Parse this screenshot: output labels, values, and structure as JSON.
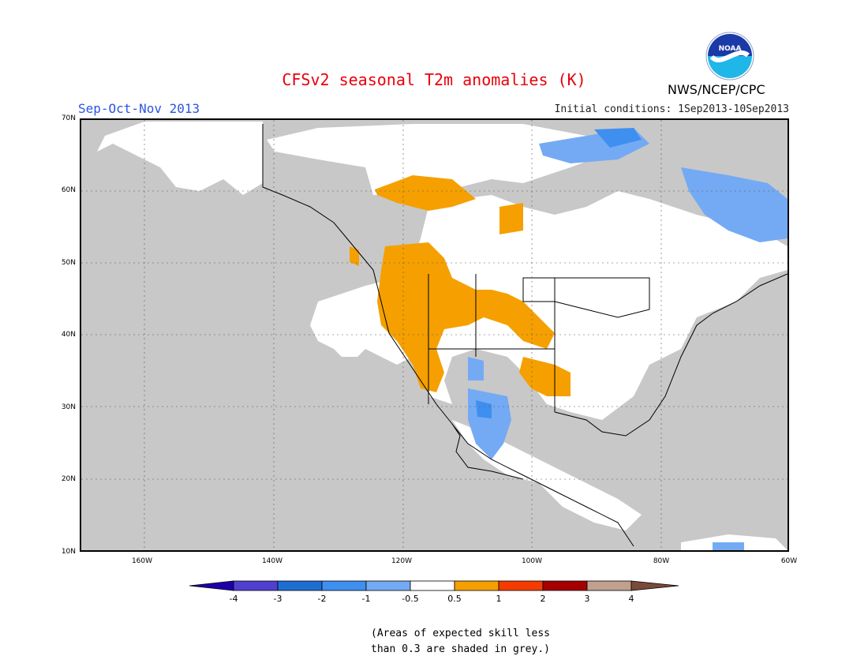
{
  "header": {
    "title": "CFSv2 seasonal T2m anomalies (K)",
    "season": "Sep-Oct-Nov 2013",
    "initial_conditions": "Initial conditions: 1Sep2013-10Sep2013",
    "organization": "NWS/NCEP/CPC",
    "logo_text": "NOAA"
  },
  "map": {
    "lat_labels": [
      "70N",
      "60N",
      "50N",
      "40N",
      "30N",
      "20N",
      "10N"
    ],
    "lon_labels": [
      "160W",
      "140W",
      "120W",
      "100W",
      "80W",
      "60W"
    ],
    "colors": {
      "grey_low_skill": "#c8c8c8",
      "neutral": "#ffffff",
      "warm_0_5_to_1": "#f5a000",
      "cool_minus1_to_minus0_5": "#74aaf4",
      "cool_minus2_to_minus1": "#3f8ff0"
    }
  },
  "colorbar": {
    "labels": [
      "-4",
      "-3",
      "-2",
      "-1",
      "-0.5",
      "0.5",
      "1",
      "2",
      "3",
      "4"
    ],
    "colors": [
      "#1e00a8",
      "#5040d0",
      "#1e6ed2",
      "#3f8ff0",
      "#74aaf4",
      "#ffffff",
      "#f5a000",
      "#f53c00",
      "#a50000",
      "#c0a090",
      "#7a4a3a"
    ]
  },
  "footnote": {
    "line1": "(Areas of expected skill less",
    "line2": "than 0.3 are shaded in grey.)"
  }
}
